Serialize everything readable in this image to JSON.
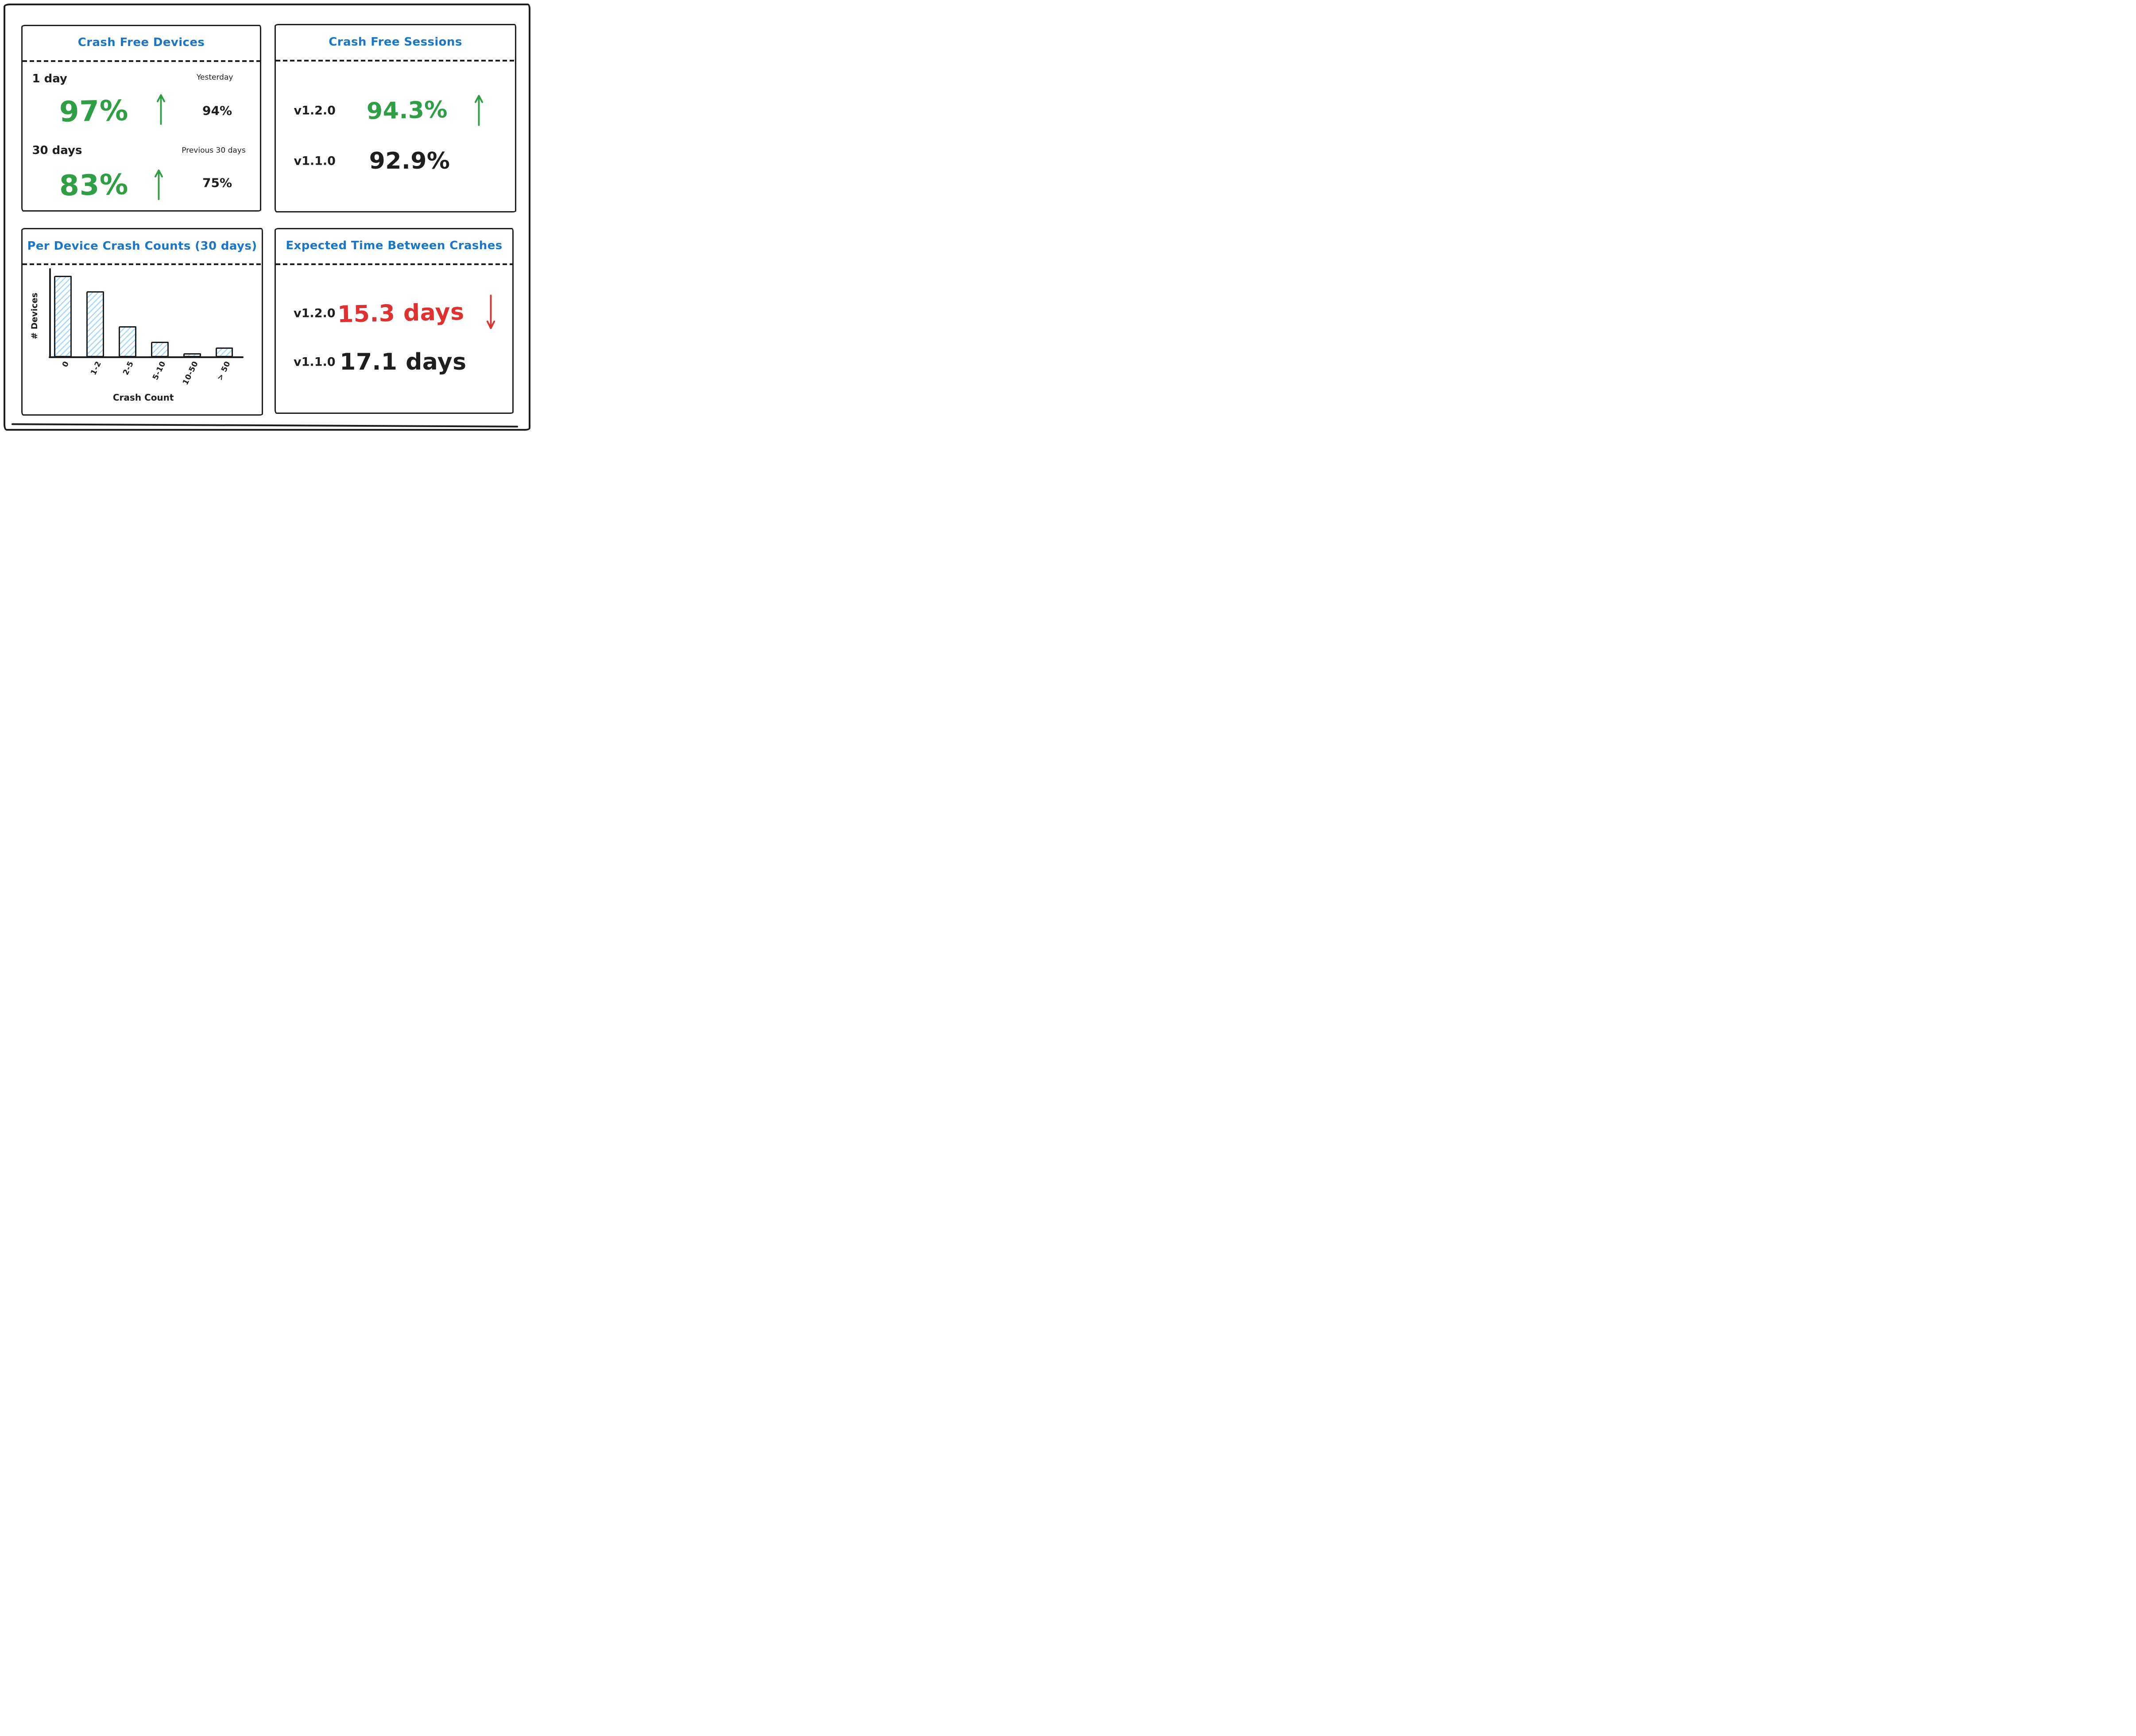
{
  "colors": {
    "ink": "#1e1e1e",
    "blue": "#1a77c7",
    "green": "#2f9e44",
    "red": "#e03131",
    "hatch": "#a5d8ff"
  },
  "panels": {
    "crash_free_devices": {
      "title": "Crash Free Devices",
      "rows": [
        {
          "period": "1 day",
          "value": "97%",
          "trend": "up",
          "compare_label": "Yesterday",
          "compare_value": "94%"
        },
        {
          "period": "30 days",
          "value": "83%",
          "trend": "up",
          "compare_label": "Previous 30 days",
          "compare_value": "75%"
        }
      ]
    },
    "crash_free_sessions": {
      "title": "Crash Free Sessions",
      "rows": [
        {
          "version": "v1.2.0",
          "value": "94.3%",
          "trend": "up"
        },
        {
          "version": "v1.1.0",
          "value": "92.9%",
          "trend": "none"
        }
      ]
    },
    "per_device_crash_counts": {
      "title": "Per Device Crash Counts (30 days)",
      "xlabel": "Crash Count",
      "ylabel": "# Devices"
    },
    "expected_time_between_crashes": {
      "title": "Expected Time Between Crashes",
      "rows": [
        {
          "version": "v1.2.0",
          "value": "15.3 days",
          "trend": "down"
        },
        {
          "version": "v1.1.0",
          "value": "17.1 days",
          "trend": "none"
        }
      ]
    }
  },
  "chart_data": [
    {
      "type": "table",
      "title": "Crash Free Devices",
      "rows": [
        {
          "period": "1 day",
          "value_pct": 97,
          "trend": "up",
          "comparison_label": "Yesterday",
          "comparison_pct": 94
        },
        {
          "period": "30 days",
          "value_pct": 83,
          "trend": "up",
          "comparison_label": "Previous 30 days",
          "comparison_pct": 75
        }
      ]
    },
    {
      "type": "table",
      "title": "Crash Free Sessions",
      "rows": [
        {
          "version": "v1.2.0",
          "value_pct": 94.3,
          "trend": "up"
        },
        {
          "version": "v1.1.0",
          "value_pct": 92.9,
          "trend": "none"
        }
      ]
    },
    {
      "type": "bar",
      "title": "Per Device Crash Counts (30 days)",
      "xlabel": "Crash Count",
      "ylabel": "# Devices",
      "categories": [
        "0",
        "1-2",
        "2-5",
        "5-10",
        "10-50",
        "> 50"
      ],
      "values": [
        100,
        81,
        38,
        19,
        5,
        12
      ],
      "values_note": "relative bar heights as % of tallest bar; y-axis shows no numeric ticks",
      "ylim": [
        0,
        100
      ],
      "grid": false,
      "legend": false,
      "bar_fill": "white with light-blue diagonal hatching"
    },
    {
      "type": "table",
      "title": "Expected Time Between Crashes",
      "rows": [
        {
          "version": "v1.2.0",
          "value_days": 15.3,
          "trend": "down"
        },
        {
          "version": "v1.1.0",
          "value_days": 17.1,
          "trend": "none"
        }
      ]
    }
  ]
}
